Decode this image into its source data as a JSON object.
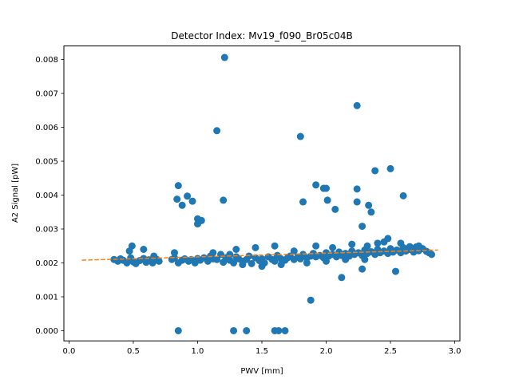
{
  "chart_data": {
    "type": "scatter",
    "title": "Detector Index: Mv19_f090_Br05c04B",
    "xlabel": "PWV [mm]",
    "ylabel": "A2 Signal [pW]",
    "xlim": [
      -0.04,
      3.04
    ],
    "ylim": [
      -0.0003,
      0.0084
    ],
    "xticks": [
      0.0,
      0.5,
      1.0,
      1.5,
      2.0,
      2.5,
      3.0
    ],
    "xtick_labels": [
      "0.0",
      "0.5",
      "1.0",
      "1.5",
      "2.0",
      "2.5",
      "3.0"
    ],
    "yticks": [
      0.0,
      0.001,
      0.002,
      0.003,
      0.004,
      0.005,
      0.006,
      0.007,
      0.008
    ],
    "ytick_labels": [
      "0.000",
      "0.001",
      "0.002",
      "0.003",
      "0.004",
      "0.005",
      "0.006",
      "0.007",
      "0.008"
    ],
    "grid": false,
    "colors": {
      "points": "#1f77b4",
      "fit": "#ff7f0e"
    },
    "series": [
      {
        "type": "scatter",
        "points": [
          [
            0.35,
            0.0021
          ],
          [
            0.38,
            0.00205
          ],
          [
            0.4,
            0.00212
          ],
          [
            0.42,
            0.00208
          ],
          [
            0.45,
            0.002
          ],
          [
            0.48,
            0.00215
          ],
          [
            0.5,
            0.00203
          ],
          [
            0.52,
            0.00198
          ],
          [
            0.55,
            0.00207
          ],
          [
            0.58,
            0.00213
          ],
          [
            0.6,
            0.00202
          ],
          [
            0.62,
            0.00209
          ],
          [
            0.65,
            0.002
          ],
          [
            0.68,
            0.00211
          ],
          [
            0.7,
            0.00205
          ],
          [
            0.47,
            0.00235
          ],
          [
            0.49,
            0.0025
          ],
          [
            0.58,
            0.0024
          ],
          [
            0.66,
            0.0022
          ],
          [
            0.8,
            0.0021
          ],
          [
            0.82,
            0.00215
          ],
          [
            0.85,
            0.002
          ],
          [
            0.88,
            0.00208
          ],
          [
            0.9,
            0.00212
          ],
          [
            0.93,
            0.00205
          ],
          [
            0.95,
            0.0021
          ],
          [
            0.98,
            0.002
          ],
          [
            1.0,
            0.00213
          ],
          [
            1.02,
            0.00208
          ],
          [
            1.05,
            0.00215
          ],
          [
            1.08,
            0.00205
          ],
          [
            1.1,
            0.0022
          ],
          [
            1.12,
            0.00212
          ],
          [
            1.15,
            0.0021
          ],
          [
            1.18,
            0.00225
          ],
          [
            1.2,
            0.00202
          ],
          [
            1.22,
            0.00215
          ],
          [
            1.25,
            0.00208
          ],
          [
            1.28,
            0.002
          ],
          [
            1.3,
            0.00218
          ],
          [
            1.32,
            0.00212
          ],
          [
            1.35,
            0.00205
          ],
          [
            1.38,
            0.0021
          ],
          [
            1.4,
            0.0022
          ],
          [
            1.42,
            0.00198
          ],
          [
            1.45,
            0.00215
          ],
          [
            1.48,
            0.00207
          ],
          [
            1.5,
            0.00212
          ],
          [
            1.52,
            0.002
          ],
          [
            1.55,
            0.00218
          ],
          [
            1.58,
            0.0021
          ],
          [
            1.6,
            0.00205
          ],
          [
            1.62,
            0.00222
          ],
          [
            1.65,
            0.00212
          ],
          [
            1.68,
            0.00208
          ],
          [
            1.7,
            0.00215
          ],
          [
            1.72,
            0.0022
          ],
          [
            1.75,
            0.0021
          ],
          [
            1.78,
            0.00218
          ],
          [
            1.8,
            0.00212
          ],
          [
            1.82,
            0.00225
          ],
          [
            1.85,
            0.00215
          ],
          [
            1.88,
            0.0022
          ],
          [
            1.9,
            0.00228
          ],
          [
            1.92,
            0.00218
          ],
          [
            1.95,
            0.00222
          ],
          [
            1.98,
            0.00215
          ],
          [
            2.0,
            0.0023
          ],
          [
            2.02,
            0.0022
          ],
          [
            2.05,
            0.00225
          ],
          [
            2.08,
            0.00218
          ],
          [
            2.1,
            0.00232
          ],
          [
            2.12,
            0.00222
          ],
          [
            2.15,
            0.00228
          ],
          [
            2.18,
            0.0022
          ],
          [
            2.2,
            0.00235
          ],
          [
            2.22,
            0.00225
          ],
          [
            2.25,
            0.0023
          ],
          [
            2.28,
            0.00222
          ],
          [
            2.3,
            0.00238
          ],
          [
            2.32,
            0.00228
          ],
          [
            2.35,
            0.00233
          ],
          [
            2.38,
            0.00225
          ],
          [
            2.4,
            0.0024
          ],
          [
            2.42,
            0.0023
          ],
          [
            2.45,
            0.00235
          ],
          [
            2.48,
            0.00228
          ],
          [
            2.5,
            0.00242
          ],
          [
            2.52,
            0.00232
          ],
          [
            2.55,
            0.00238
          ],
          [
            2.58,
            0.0023
          ],
          [
            2.6,
            0.00245
          ],
          [
            2.62,
            0.00235
          ],
          [
            2.65,
            0.0024
          ],
          [
            2.68,
            0.00232
          ],
          [
            2.7,
            0.00247
          ],
          [
            2.72,
            0.00236
          ],
          [
            2.75,
            0.00242
          ],
          [
            2.78,
            0.00234
          ],
          [
            2.8,
            0.0023
          ],
          [
            2.82,
            0.00225
          ],
          [
            1.3,
            0.0024
          ],
          [
            1.45,
            0.00245
          ],
          [
            1.6,
            0.0025
          ],
          [
            1.75,
            0.00235
          ],
          [
            1.92,
            0.0025
          ],
          [
            2.05,
            0.00245
          ],
          [
            2.2,
            0.00255
          ],
          [
            2.32,
            0.0025
          ],
          [
            2.45,
            0.00262
          ],
          [
            2.58,
            0.00258
          ],
          [
            2.4,
            0.00258
          ],
          [
            2.48,
            0.00272
          ],
          [
            2.65,
            0.00248
          ],
          [
            2.72,
            0.0025
          ],
          [
            1.12,
            0.0023
          ],
          [
            1.25,
            0.00225
          ],
          [
            1.35,
            0.00195
          ],
          [
            1.5,
            0.0019
          ],
          [
            1.65,
            0.00195
          ],
          [
            1.85,
            0.002
          ],
          [
            2.0,
            0.00205
          ],
          [
            2.15,
            0.0021
          ],
          [
            2.3,
            0.0021
          ],
          [
            0.85,
            0.00428
          ],
          [
            0.84,
            0.00388
          ],
          [
            0.88,
            0.0037
          ],
          [
            0.92,
            0.00397
          ],
          [
            0.96,
            0.00382
          ],
          [
            1.0,
            0.0033
          ],
          [
            1.03,
            0.00325
          ],
          [
            1.0,
            0.00315
          ],
          [
            0.82,
            0.0023
          ],
          [
            0.85,
            0.0
          ],
          [
            1.15,
            0.0059
          ],
          [
            1.2,
            0.00385
          ],
          [
            1.21,
            0.00806
          ],
          [
            1.28,
            0.0
          ],
          [
            1.38,
            0.0
          ],
          [
            1.6,
            0.0
          ],
          [
            1.63,
            0.0
          ],
          [
            1.68,
            0.0
          ],
          [
            1.8,
            0.00573
          ],
          [
            1.82,
            0.0038
          ],
          [
            1.88,
            0.0009
          ],
          [
            1.92,
            0.0043
          ],
          [
            1.98,
            0.0042
          ],
          [
            2.0,
            0.0042
          ],
          [
            2.01,
            0.00385
          ],
          [
            2.07,
            0.00358
          ],
          [
            2.12,
            0.00157
          ],
          [
            2.24,
            0.00664
          ],
          [
            2.24,
            0.00418
          ],
          [
            2.24,
            0.0038
          ],
          [
            2.28,
            0.00182
          ],
          [
            2.28,
            0.00308
          ],
          [
            2.33,
            0.0037
          ],
          [
            2.35,
            0.0035
          ],
          [
            2.38,
            0.00472
          ],
          [
            2.5,
            0.00478
          ],
          [
            2.54,
            0.00175
          ],
          [
            2.6,
            0.00398
          ]
        ]
      },
      {
        "type": "line",
        "style": "dashed",
        "x": [
          0.1,
          2.87
        ],
        "y": [
          0.00208,
          0.00238
        ]
      }
    ]
  }
}
